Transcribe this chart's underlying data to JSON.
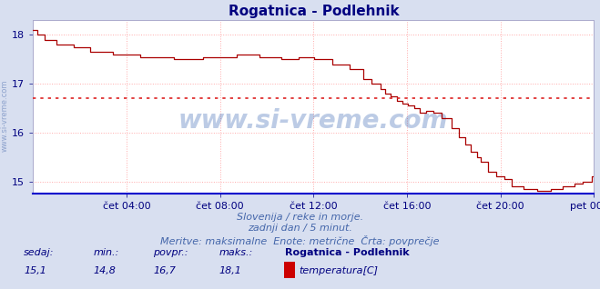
{
  "title": "Rogatnica - Podlehnik",
  "title_color": "#000080",
  "title_fontsize": 11,
  "bg_color": "#d8dff0",
  "plot_bg_color": "#ffffff",
  "line_color": "#aa0000",
  "avg_line_color": "#dd2222",
  "avg_value": 16.7,
  "ylim": [
    14.75,
    18.3
  ],
  "yticks": [
    15,
    16,
    17,
    18
  ],
  "grid_color": "#ffaaaa",
  "grid_linestyle": "dotted",
  "watermark": "www.si-vreme.com",
  "watermark_color": "#2255aa",
  "watermark_alpha": 0.3,
  "watermark_fontsize": 20,
  "axis_label_color": "#000080",
  "axis_label_fontsize": 8,
  "tick_labels": [
    "čet 04:00",
    "čet 08:00",
    "čet 12:00",
    "čet 16:00",
    "čet 20:00",
    "pet 00:00"
  ],
  "tick_positions_frac": [
    0.1667,
    0.3333,
    0.5,
    0.6667,
    0.8333,
    1.0
  ],
  "footer_line1": "Slovenija / reke in morje.",
  "footer_line2": "zadnji dan / 5 minut.",
  "footer_line3": "Meritve: maksimalne  Enote: metrične  Črta: povprečje",
  "footer_color": "#4466aa",
  "footer_fontsize": 8,
  "stats_labels": [
    "sedaj:",
    "min.:",
    "povpr.:",
    "maks.:"
  ],
  "stats_values": [
    "15,1",
    "14,8",
    "16,7",
    "18,1"
  ],
  "stats_series_label": "Rogatnica - Podlehnik",
  "stats_series_name": "temperatura[C]",
  "stats_color": "#000080",
  "stats_label_fontsize": 8,
  "stats_value_fontsize": 8,
  "legend_color": "#cc0000",
  "sidebar_text": "www.si-vreme.com",
  "sidebar_color": "#4466aa",
  "sidebar_alpha": 0.5,
  "sidebar_fontsize": 6,
  "n_points": 288
}
